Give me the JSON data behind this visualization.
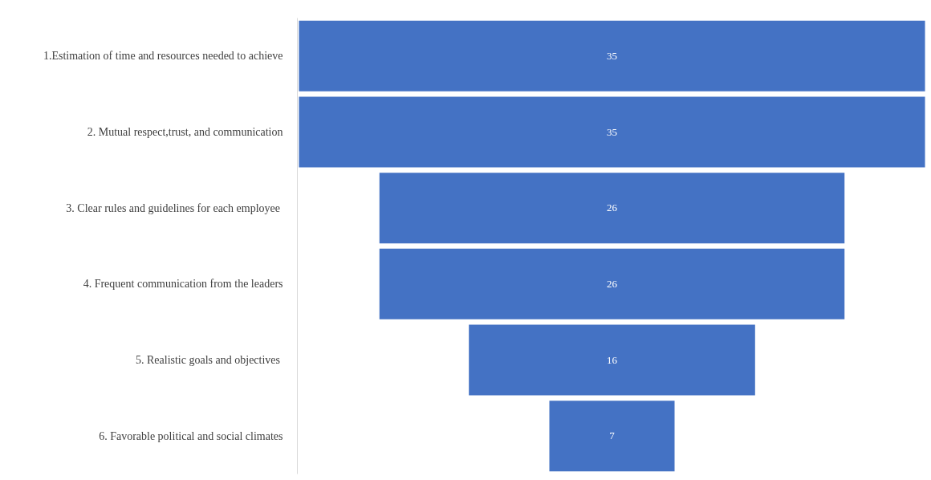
{
  "chart_data": {
    "type": "other",
    "categories": [
      "1.Estimation of time and resources needed to achieve",
      "2. Mutual respect,trust, and communication",
      "3. Clear rules and  guidelines for each employee",
      "4. Frequent communication from the leaders",
      "5. Realistic  goals and objectives",
      "6. Favorable political and social climates"
    ],
    "values": [
      35,
      35,
      26,
      26,
      16,
      7
    ],
    "color": "#4472c4",
    "data_labels": true
  }
}
